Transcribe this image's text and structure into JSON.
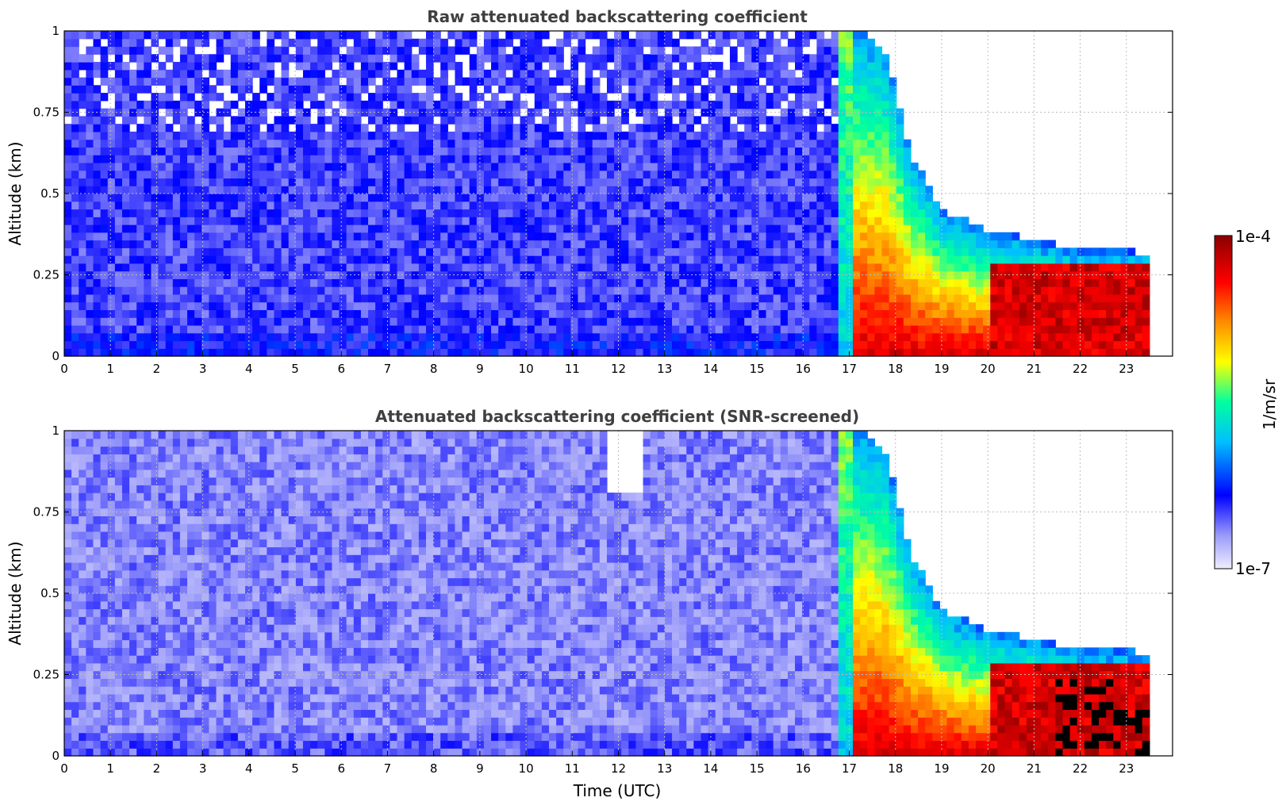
{
  "chart_data": [
    {
      "type": "heatmap",
      "id": "raw",
      "title": "Raw attenuated backscattering coefficient",
      "xlabel": "",
      "ylabel": "Altitude (km)",
      "xlim": [
        0,
        24
      ],
      "ylim": [
        0,
        1
      ],
      "xticks": [
        "0",
        "1",
        "2",
        "3",
        "4",
        "5",
        "6",
        "7",
        "8",
        "9",
        "10",
        "11",
        "12",
        "13",
        "14",
        "15",
        "16",
        "17",
        "18",
        "19",
        "20",
        "21",
        "22",
        "23"
      ],
      "yticks": [
        "0",
        "0.25",
        "0.5",
        "0.75",
        "1"
      ],
      "grid": true,
      "data_end_hour": 23.5,
      "fog_onset_hour": 17.0,
      "fog_top_km_profile": [
        {
          "t": 17.0,
          "top": 1.0
        },
        {
          "t": 17.8,
          "top": 0.9
        },
        {
          "t": 18.3,
          "top": 0.6
        },
        {
          "t": 19.0,
          "top": 0.42
        },
        {
          "t": 20.0,
          "top": 0.36
        },
        {
          "t": 21.0,
          "top": 0.33
        },
        {
          "t": 22.0,
          "top": 0.3
        },
        {
          "t": 23.4,
          "top": 0.29
        }
      ]
    },
    {
      "type": "heatmap",
      "id": "snr",
      "title": "Attenuated backscattering coefficient (SNR-screened)",
      "xlabel": "Time (UTC)",
      "ylabel": "Altitude (km)",
      "xlim": [
        0,
        24
      ],
      "ylim": [
        0,
        1
      ],
      "xticks": [
        "0",
        "1",
        "2",
        "3",
        "4",
        "5",
        "6",
        "7",
        "8",
        "9",
        "10",
        "11",
        "12",
        "13",
        "14",
        "15",
        "16",
        "17",
        "18",
        "19",
        "20",
        "21",
        "22",
        "23"
      ],
      "yticks": [
        "0",
        "0.25",
        "0.5",
        "0.75",
        "1"
      ],
      "grid": true,
      "data_end_hour": 23.5,
      "fog_onset_hour": 17.0
    }
  ],
  "colorbar": {
    "label": "1/m/sr",
    "max_label": "1e-4",
    "min_label": "1e-7",
    "scale": "log",
    "colors": [
      "#eeeeff",
      "#9a9afa",
      "#0000ff",
      "#00bfff",
      "#00ffa0",
      "#ffff00",
      "#ff8c00",
      "#ff0000",
      "#8b0000"
    ]
  }
}
